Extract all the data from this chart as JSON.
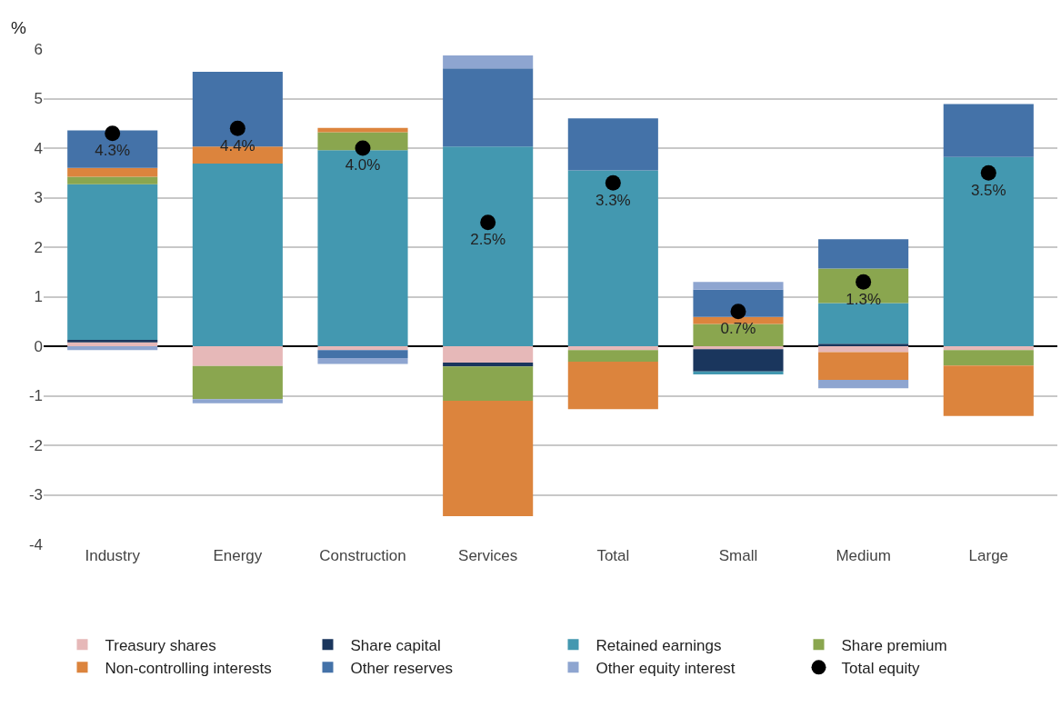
{
  "chart_data": {
    "type": "bar",
    "stacked": true,
    "ylabel": "%",
    "categories": [
      "Industry",
      "Energy",
      "Construction",
      "Services",
      "Total",
      "Small",
      "Medium",
      "Large"
    ],
    "ylim": [
      -4,
      6
    ],
    "yticks": [
      -4,
      -3,
      -2,
      -1,
      0,
      1,
      2,
      3,
      4,
      5,
      6
    ],
    "grid": "y",
    "legend": "bottom",
    "series": [
      {
        "name": "Treasury shares",
        "color": "#e6b8b8",
        "values": [
          0.08,
          -0.4,
          -0.08,
          -0.33,
          -0.08,
          -0.06,
          -0.12,
          -0.08
        ]
      },
      {
        "name": "Share capital",
        "color": "#1a365d",
        "values": [
          0.05,
          null,
          null,
          -0.08,
          null,
          -0.45,
          0.05,
          null
        ]
      },
      {
        "name": "Retained earnings",
        "color": "#4398b0",
        "values": [
          3.14,
          3.69,
          3.96,
          4.03,
          3.55,
          -0.06,
          0.82,
          3.82
        ]
      },
      {
        "name": "Share premium",
        "color": "#8aa64f",
        "values": [
          0.15,
          -0.67,
          0.36,
          -0.69,
          -0.23,
          0.45,
          0.7,
          -0.31
        ]
      },
      {
        "name": "Non-controlling interests",
        "color": "#dc843d",
        "values": [
          0.18,
          0.34,
          0.09,
          -2.33,
          -0.96,
          0.14,
          -0.56,
          -1.02
        ]
      },
      {
        "name": "Other reserves",
        "color": "#4472a8",
        "values": [
          0.76,
          1.51,
          -0.16,
          1.58,
          1.05,
          0.55,
          0.59,
          1.07
        ]
      },
      {
        "name": "Other equity interest",
        "color": "#8ea5d0",
        "values": [
          -0.08,
          -0.08,
          -0.12,
          0.26,
          null,
          0.16,
          -0.17,
          null
        ]
      },
      {
        "name": "Total equity",
        "type": "scatter",
        "marker": "circle",
        "color": "#000000",
        "values": [
          4.3,
          4.4,
          4.0,
          2.5,
          3.3,
          0.7,
          1.3,
          3.5
        ],
        "value_labels": [
          "4.3%",
          "4.4%",
          "4.0%",
          "2.5%",
          "3.3%",
          "0.7%",
          "1.3%",
          "3.5%"
        ]
      }
    ]
  }
}
